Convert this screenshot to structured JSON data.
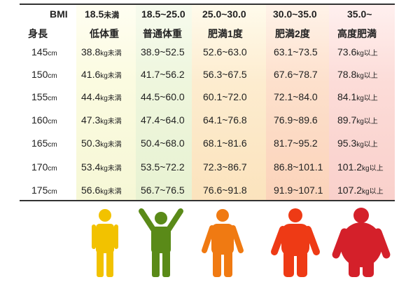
{
  "header": {
    "bmi_label": "BMI",
    "height_label": "身長",
    "columns": [
      {
        "range": "18.5",
        "range_suffix": "未満",
        "category": "低体重"
      },
      {
        "range": "18.5~25.0",
        "range_suffix": "",
        "category": "普通体重"
      },
      {
        "range": "25.0~30.0",
        "range_suffix": "",
        "category": "肥満1度"
      },
      {
        "range": "30.0~35.0",
        "range_suffix": "",
        "category": "肥満2度"
      },
      {
        "range": "35.0~",
        "range_suffix": "",
        "category": "高度肥満"
      }
    ]
  },
  "rows": [
    {
      "height": "145",
      "height_unit": "cm",
      "c0": "38.8",
      "c0_unit": "kg未満",
      "c1": "38.9~52.5",
      "c2": "52.6~63.0",
      "c3": "63.1~73.5",
      "c4": "73.6",
      "c4_unit": "kg以上"
    },
    {
      "height": "150",
      "height_unit": "cm",
      "c0": "41.6",
      "c0_unit": "kg未満",
      "c1": "41.7~56.2",
      "c2": "56.3~67.5",
      "c3": "67.6~78.7",
      "c4": "78.8",
      "c4_unit": "kg以上"
    },
    {
      "height": "155",
      "height_unit": "cm",
      "c0": "44.4",
      "c0_unit": "kg未満",
      "c1": "44.5~60.0",
      "c2": "60.1~72.0",
      "c3": "72.1~84.0",
      "c4": "84.1",
      "c4_unit": "kg以上"
    },
    {
      "height": "160",
      "height_unit": "cm",
      "c0": "47.3",
      "c0_unit": "kg未満",
      "c1": "47.4~64.0",
      "c2": "64.1~76.8",
      "c3": "76.9~89.6",
      "c4": "89.7",
      "c4_unit": "kg以上"
    },
    {
      "height": "165",
      "height_unit": "cm",
      "c0": "50.3",
      "c0_unit": "kg未満",
      "c1": "50.4~68.0",
      "c2": "68.1~81.6",
      "c3": "81.7~95.2",
      "c4": "95.3",
      "c4_unit": "kg以上"
    },
    {
      "height": "170",
      "height_unit": "cm",
      "c0": "53.4",
      "c0_unit": "kg未満",
      "c1": "53.5~72.2",
      "c2": "72.3~86.7",
      "c3": "86.8~101.1",
      "c4": "101.2",
      "c4_unit": "kg以上"
    },
    {
      "height": "175",
      "height_unit": "cm",
      "c0": "56.6",
      "c0_unit": "kg未満",
      "c1": "56.7~76.5",
      "c2": "76.6~91.8",
      "c3": "91.9~107.1",
      "c4": "107.2",
      "c4_unit": "kg以上"
    }
  ],
  "figures": [
    {
      "icon": "thin-person-icon",
      "color": "#f2c200"
    },
    {
      "icon": "arms-raised-person-icon",
      "color": "#5a8a18"
    },
    {
      "icon": "chubby-person-icon",
      "color": "#f07a12"
    },
    {
      "icon": "overweight-person-icon",
      "color": "#ee3a15"
    },
    {
      "icon": "obese-person-icon",
      "color": "#d4202a"
    }
  ]
}
